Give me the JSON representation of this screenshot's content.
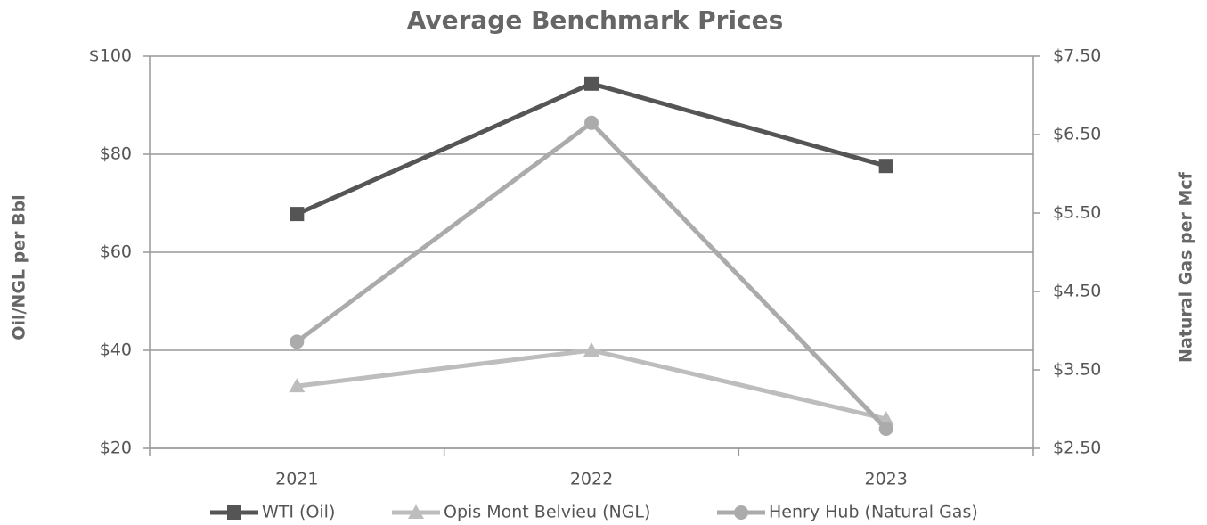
{
  "chart_data": {
    "type": "line",
    "title": "Average Benchmark Prices",
    "categories": [
      "2021",
      "2022",
      "2023"
    ],
    "series": [
      {
        "name": "WTI (Oil)",
        "color": "#555555",
        "marker": "square",
        "values": [
          67.8,
          94.4,
          77.6
        ]
      },
      {
        "name": "Opis Mont Belvieu (NGL)",
        "color": "#bdbdbd",
        "marker": "triangle",
        "values": [
          32.7,
          40,
          26
        ]
      },
      {
        "name": "Henry Hub (Natural Gas)",
        "color": "#ababab",
        "marker": "circle",
        "axis": "y2",
        "values": [
          3.86,
          6.65,
          2.75
        ]
      }
    ],
    "ylabel": "Oil/NGL per Bbl",
    "y2label": "Natural Gas per Mcf",
    "ylim": [
      20,
      100
    ],
    "yticks": [
      {
        "value": 20,
        "label": "$20"
      },
      {
        "value": 40,
        "label": "$40"
      },
      {
        "value": 60,
        "label": "$60"
      },
      {
        "value": 80,
        "label": "$80"
      },
      {
        "value": 100,
        "label": "$100"
      }
    ],
    "y2lim": [
      2.5,
      7.5
    ],
    "y2ticks": [
      {
        "value": 2.5,
        "label": "$2.50"
      },
      {
        "value": 3.5,
        "label": "$3.50"
      },
      {
        "value": 4.5,
        "label": "$4.50"
      },
      {
        "value": 5.5,
        "label": "$5.50"
      },
      {
        "value": 6.5,
        "label": "$6.50"
      },
      {
        "value": 7.5,
        "label": "$7.50"
      }
    ],
    "grid": true,
    "legend": "bottom"
  }
}
